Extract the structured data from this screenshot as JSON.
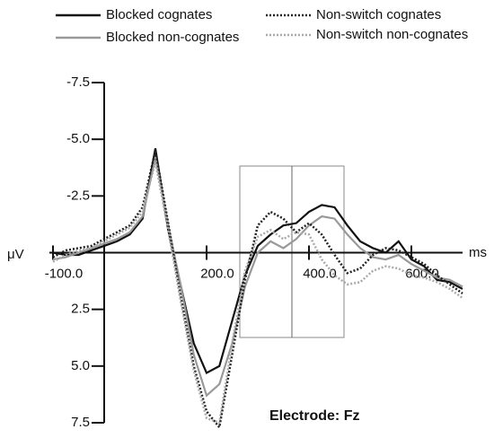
{
  "chart_data": {
    "type": "line",
    "annotation": "Electrode: Fz",
    "x_label": "ms",
    "y_label": "μV",
    "x": [
      -100,
      -75,
      -50,
      -25,
      0,
      25,
      50,
      75,
      100,
      125,
      150,
      175,
      200,
      225,
      250,
      275,
      300,
      325,
      350,
      375,
      400,
      425,
      450,
      475,
      500,
      525,
      550,
      575,
      600,
      625,
      650,
      675,
      700
    ],
    "series": [
      {
        "name": "Blocked cognates",
        "color": "#111111",
        "style": "solid",
        "values": [
          0,
          0.1,
          0.1,
          -0.1,
          -0.3,
          -0.5,
          -0.8,
          -1.5,
          -4.6,
          -1.0,
          1.5,
          4.0,
          5.3,
          5.0,
          3.0,
          1.0,
          -0.3,
          -0.8,
          -1.2,
          -1.3,
          -1.8,
          -2.1,
          -2.0,
          -1.2,
          -0.5,
          -0.2,
          0.0,
          -0.5,
          0.3,
          0.6,
          1.2,
          1.3,
          1.6
        ]
      },
      {
        "name": "Blocked non-cognates",
        "color": "#999999",
        "style": "solid",
        "values": [
          0.3,
          0.2,
          0,
          -0.2,
          -0.4,
          -0.6,
          -0.9,
          -1.6,
          -4.2,
          -1.2,
          1.5,
          4.5,
          6.3,
          5.8,
          4.0,
          1.5,
          0,
          -0.5,
          -0.2,
          -0.6,
          -1.2,
          -1.6,
          -1.5,
          -0.8,
          -0.2,
          0.2,
          0.3,
          0.1,
          0.5,
          0.8,
          1.1,
          1.2,
          1.5
        ]
      },
      {
        "name": "Non-switch cognates",
        "color": "#222222",
        "style": "dotted",
        "values": [
          0.2,
          -0.1,
          -0.2,
          -0.3,
          -0.6,
          -0.9,
          -1.2,
          -2.0,
          -4.5,
          -1.3,
          2.0,
          5.0,
          7.0,
          7.7,
          4.5,
          1.2,
          -1.2,
          -1.8,
          -1.5,
          -0.9,
          -1.3,
          -0.8,
          0.1,
          0.9,
          0.7,
          0.1,
          -0.2,
          -0.1,
          0.2,
          0.5,
          1.0,
          1.4,
          1.8
        ]
      },
      {
        "name": "Non-switch non-cognates",
        "color": "#aaaaaa",
        "style": "dotted",
        "values": [
          0.4,
          0.1,
          -0.1,
          -0.2,
          -0.5,
          -0.8,
          -1.1,
          -1.8,
          -4.0,
          -1.0,
          2.2,
          5.2,
          7.3,
          7.5,
          4.0,
          0.8,
          -0.7,
          -1.0,
          -0.6,
          -0.9,
          -0.8,
          0.3,
          1.0,
          1.4,
          1.3,
          0.8,
          0.6,
          0.7,
          1.0,
          1.1,
          1.3,
          1.6,
          2.0
        ]
      }
    ],
    "xlim": [
      -100,
      700
    ],
    "xticks": [
      {
        "value": -100,
        "label": "-100.0"
      },
      {
        "value": 200,
        "label": "200.0"
      },
      {
        "value": 400,
        "label": "400.0"
      },
      {
        "value": 600,
        "label": "600.0"
      }
    ],
    "ylim": [
      -7.5,
      7.5
    ],
    "y_inverted": true,
    "yticks": [
      -7.5,
      {
        "value": -5,
        "label": "-5.0"
      },
      -2.5,
      2.5,
      {
        "value": 5,
        "label": "5.0"
      },
      7.5
    ]
  }
}
